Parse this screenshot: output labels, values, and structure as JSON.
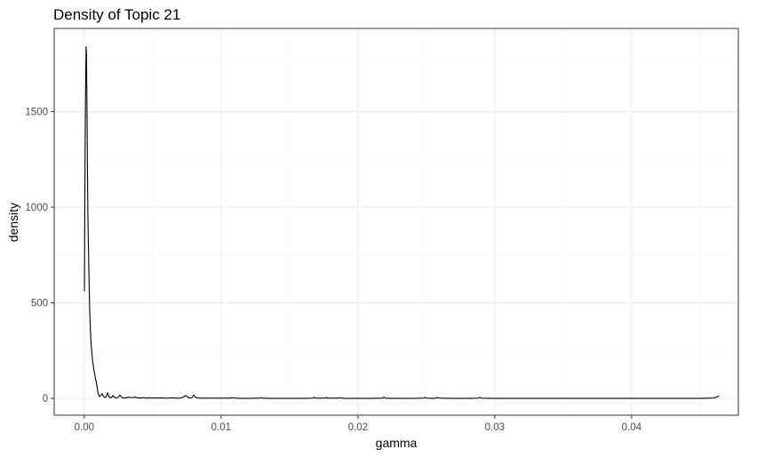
{
  "chart_data": {
    "type": "line",
    "title": "Density of Topic 21",
    "xlabel": "gamma",
    "ylabel": "density",
    "xlim": [
      -0.0022,
      0.0478
    ],
    "ylim": [
      -88,
      1935
    ],
    "x_ticks": [
      0.0,
      0.01,
      0.02,
      0.03,
      0.04
    ],
    "x_tick_labels": [
      "0.00",
      "0.01",
      "0.02",
      "0.03",
      "0.04"
    ],
    "y_ticks": [
      0,
      500,
      1000,
      1500
    ],
    "y_tick_labels": [
      "0",
      "500",
      "1000",
      "1500"
    ],
    "grid": true,
    "theme": "black-and-white",
    "colors": {
      "line": "#000000",
      "grid_major": "#ebebeb",
      "grid_minor": "#f5f5f5",
      "panel_border": "#333333",
      "tick_label": "#4d4d4d"
    },
    "series": [
      {
        "x": [
          1e-05,
          3e-05,
          6e-05,
          0.0001,
          0.00013,
          0.00016,
          0.0002,
          0.00023,
          0.00026,
          0.0003,
          0.00035,
          0.0004,
          0.00045,
          0.0005,
          0.0006,
          0.0007,
          0.0008,
          0.0009,
          0.001,
          0.0011,
          0.0012,
          0.0013,
          0.0014,
          0.0015,
          0.0016,
          0.0017,
          0.0018,
          0.0019,
          0.002,
          0.0021,
          0.0022,
          0.0023,
          0.0024,
          0.0025,
          0.0026,
          0.0027,
          0.0028,
          0.0029,
          0.003,
          0.0032,
          0.0034,
          0.0035,
          0.0036,
          0.0037,
          0.0038,
          0.0039,
          0.004,
          0.0041,
          0.0042,
          0.0043,
          0.0044,
          0.0045,
          0.0046,
          0.0047,
          0.0048,
          0.005,
          0.0052,
          0.0053,
          0.0055,
          0.0057,
          0.0058,
          0.006,
          0.0062,
          0.0063,
          0.0065,
          0.0067,
          0.007,
          0.0072,
          0.0074,
          0.0075,
          0.0076,
          0.0078,
          0.0079,
          0.008,
          0.0081,
          0.0082,
          0.0085,
          0.009,
          0.01,
          0.0107,
          0.0108,
          0.011,
          0.0115,
          0.012,
          0.0128,
          0.0129,
          0.013,
          0.0135,
          0.014,
          0.015,
          0.016,
          0.0167,
          0.0168,
          0.0169,
          0.0172,
          0.0176,
          0.0177,
          0.0178,
          0.0182,
          0.0186,
          0.0187,
          0.0188,
          0.019,
          0.02,
          0.021,
          0.0218,
          0.0219,
          0.022,
          0.0225,
          0.023,
          0.024,
          0.0248,
          0.0249,
          0.025,
          0.0255,
          0.0257,
          0.0258,
          0.0259,
          0.026,
          0.027,
          0.028,
          0.0288,
          0.0289,
          0.029,
          0.03,
          0.032,
          0.035,
          0.038,
          0.04,
          0.042,
          0.044,
          0.045,
          0.046,
          0.0462,
          0.0463,
          0.0464
        ],
        "y": [
          560,
          900,
          1300,
          1640,
          1840,
          1800,
          1500,
          1200,
          980,
          800,
          600,
          450,
          350,
          280,
          200,
          150,
          110,
          75,
          30,
          10,
          15,
          25,
          10,
          5,
          8,
          30,
          10,
          3,
          5,
          15,
          6,
          2,
          3,
          8,
          18,
          8,
          3,
          2,
          3,
          6,
          5,
          4,
          5,
          7,
          5,
          3,
          2,
          3,
          2,
          4,
          3,
          2,
          2,
          3,
          2,
          2,
          3,
          2,
          2,
          3,
          2,
          1,
          2,
          3,
          2,
          1,
          2,
          5,
          15,
          10,
          4,
          2,
          5,
          18,
          8,
          3,
          1,
          1,
          1,
          1,
          4,
          1,
          0,
          0,
          1,
          4,
          1,
          0,
          0,
          0,
          0,
          1,
          6,
          1,
          1,
          1,
          5,
          1,
          1,
          1,
          4,
          1,
          0,
          0,
          0,
          1,
          7,
          1,
          0,
          0,
          0,
          1,
          6,
          1,
          0,
          1,
          5,
          2,
          1,
          0,
          0,
          1,
          6,
          1,
          0,
          0,
          0,
          0,
          0,
          0,
          0,
          0,
          2,
          6,
          10,
          12
        ]
      }
    ]
  }
}
